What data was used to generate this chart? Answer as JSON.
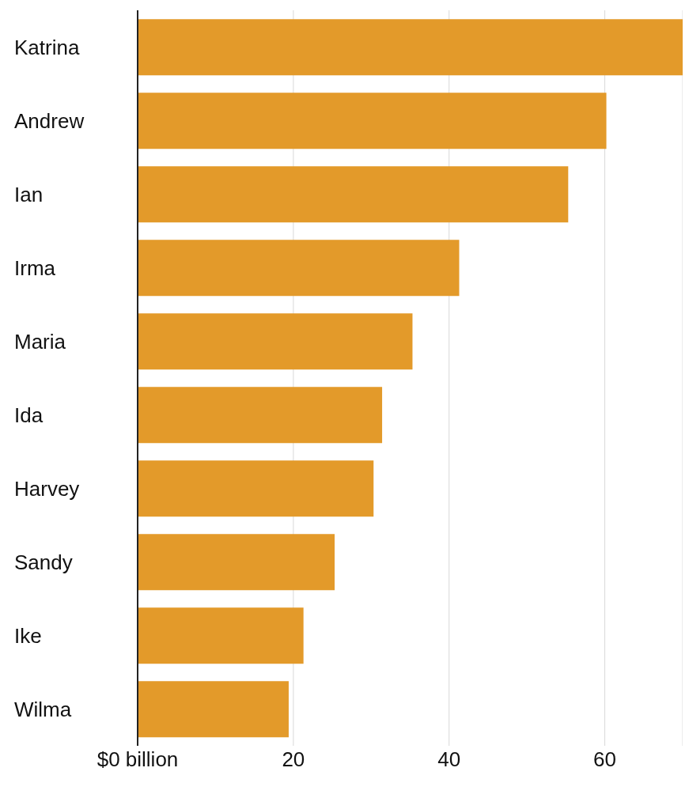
{
  "chart_data": {
    "type": "bar",
    "orientation": "horizontal",
    "categories": [
      "Katrina",
      "Andrew",
      "Ian",
      "Irma",
      "Maria",
      "Ida",
      "Harvey",
      "Sandy",
      "Ike",
      "Wilma"
    ],
    "values": [
      70,
      60.2,
      55.3,
      41.3,
      35.3,
      31.4,
      30.3,
      25.3,
      21.3,
      19.4
    ],
    "color": "#e39a2a",
    "xlim": [
      0,
      70
    ],
    "xticks": [
      {
        "value": 0,
        "label": "$0 billion"
      },
      20,
      40,
      60
    ],
    "grid": "x"
  }
}
